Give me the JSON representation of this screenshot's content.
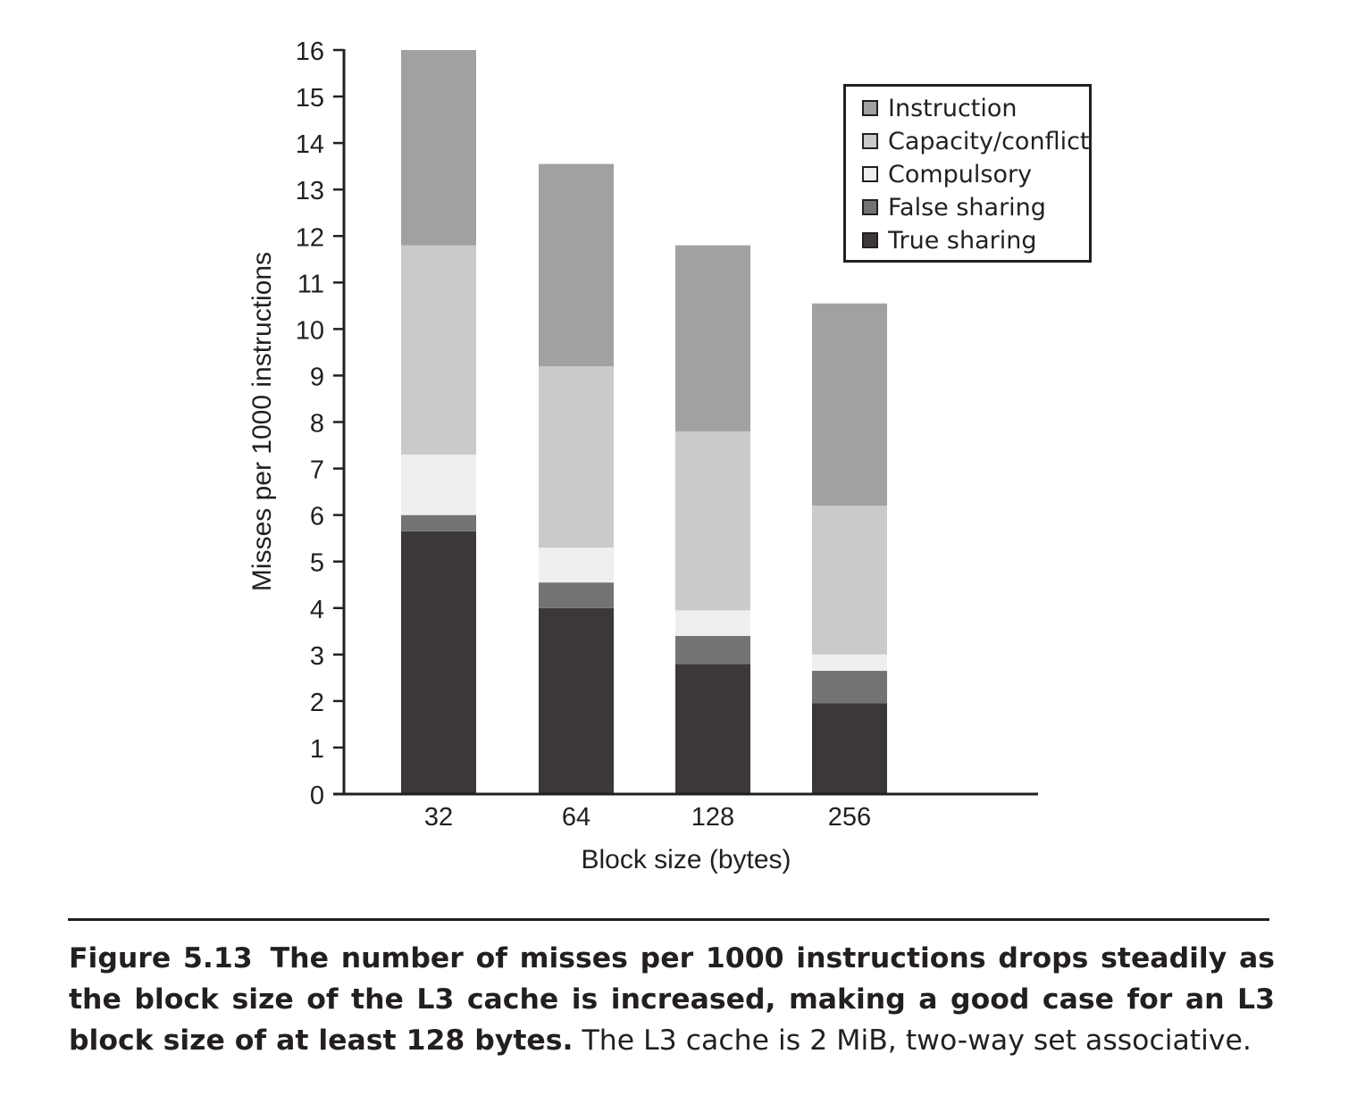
{
  "chart_data": {
    "type": "bar",
    "stacked": true,
    "categories": [
      "32",
      "64",
      "128",
      "256"
    ],
    "series": [
      {
        "name": "True sharing",
        "color": "#3c3838",
        "values": [
          5.65,
          4.0,
          2.8,
          1.95
        ]
      },
      {
        "name": "False sharing",
        "color": "#737373",
        "values": [
          0.35,
          0.55,
          0.6,
          0.7
        ]
      },
      {
        "name": "Compulsory",
        "color": "#eeefef",
        "values": [
          1.3,
          0.75,
          0.55,
          0.35
        ]
      },
      {
        "name": "Capacity/conflict",
        "color": "#cacaca",
        "values": [
          4.5,
          3.9,
          3.85,
          3.2
        ]
      },
      {
        "name": "Instruction",
        "color": "#a0a1a0",
        "values": [
          4.2,
          4.35,
          4.0,
          4.35
        ]
      }
    ],
    "legend_order": [
      "Instruction",
      "Capacity/conflict",
      "Compulsory",
      "False sharing",
      "True sharing"
    ],
    "legend_position": "top-right",
    "xlabel": "Block size (bytes)",
    "ylabel": "Misses per 1000 instructions",
    "ylim": [
      0,
      16
    ],
    "yticks": [
      "0",
      "1",
      "2",
      "3",
      "4",
      "5",
      "6",
      "7",
      "8",
      "9",
      "10",
      "11",
      "12",
      "13",
      "14",
      "15",
      "16"
    ],
    "grid": false
  },
  "caption": {
    "label": "Figure 5.13",
    "bold_text": "The number of misses per 1000 instructions drops steadily as the block size of the L3 cache is increased, making a good case for an L3 block size of at least 128 bytes.",
    "plain_text": "The L3 cache is 2 MiB, two-way set associative."
  }
}
